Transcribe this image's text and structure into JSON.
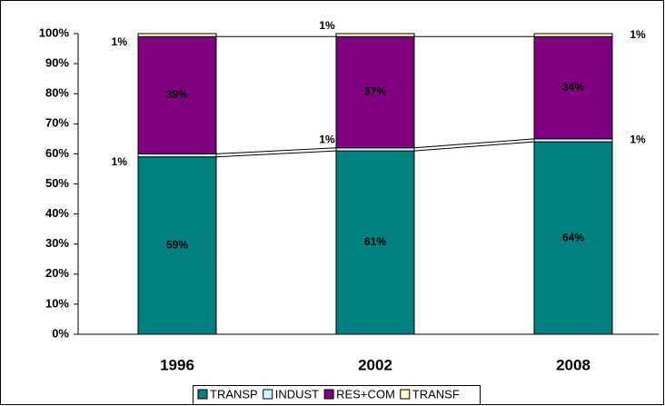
{
  "chart_data": {
    "type": "stacked_bar",
    "categories": [
      "1996",
      "2002",
      "2008"
    ],
    "series": [
      {
        "name": "TRANSP",
        "color": "#008080",
        "values": [
          59,
          61,
          64
        ],
        "value_labels": [
          "59%",
          "61%",
          "64%"
        ]
      },
      {
        "name": "INDUST",
        "color": "#ccffff",
        "values": [
          1,
          1,
          1
        ],
        "value_labels": [
          "1%",
          "1%",
          "1%"
        ]
      },
      {
        "name": "RES+COM",
        "color": "#800080",
        "values": [
          39,
          37,
          34
        ],
        "value_labels": [
          "39%",
          "37%",
          "34%"
        ]
      },
      {
        "name": "TRANSF",
        "color": "#ffffcc",
        "values": [
          1,
          1,
          1
        ],
        "value_labels": [
          "1%",
          "1%",
          "1%"
        ]
      }
    ],
    "ylim": [
      0,
      100
    ],
    "yticks": [
      {
        "value": 0,
        "label": "0%"
      },
      {
        "value": 10,
        "label": "10%"
      },
      {
        "value": 20,
        "label": "20%"
      },
      {
        "value": 30,
        "label": "30%"
      },
      {
        "value": 40,
        "label": "40%"
      },
      {
        "value": 50,
        "label": "50%"
      },
      {
        "value": 60,
        "label": "60%"
      },
      {
        "value": 70,
        "label": "70%"
      },
      {
        "value": 80,
        "label": "80%"
      },
      {
        "value": 90,
        "label": "90%"
      },
      {
        "value": 100,
        "label": "100%"
      }
    ],
    "legend": "bottom"
  }
}
